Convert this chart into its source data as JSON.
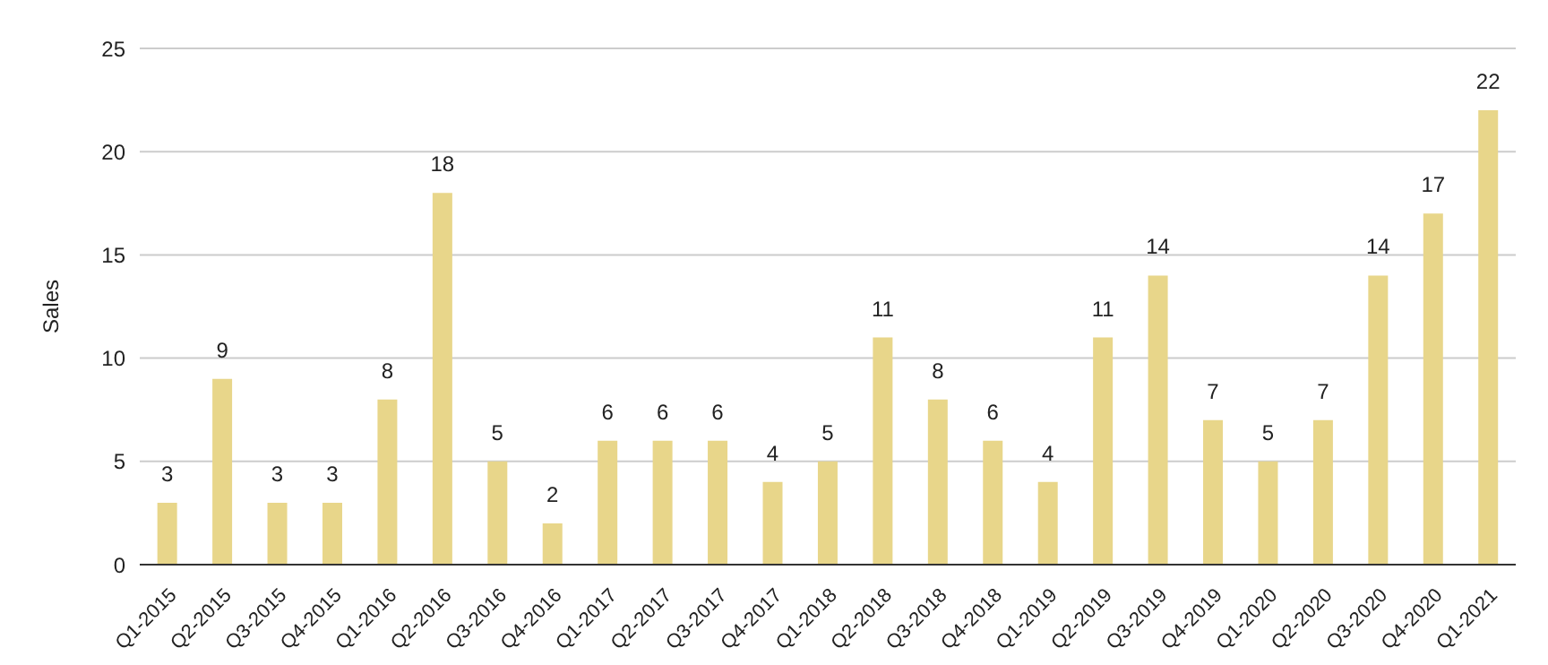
{
  "chart_data": {
    "type": "bar",
    "ylabel": "Sales",
    "categories": [
      "Q1-2015",
      "Q2-2015",
      "Q3-2015",
      "Q4-2015",
      "Q1-2016",
      "Q2-2016",
      "Q3-2016",
      "Q4-2016",
      "Q1-2017",
      "Q2-2017",
      "Q3-2017",
      "Q4-2017",
      "Q1-2018",
      "Q2-2018",
      "Q3-2018",
      "Q4-2018",
      "Q1-2019",
      "Q2-2019",
      "Q3-2019",
      "Q4-2019",
      "Q1-2020",
      "Q2-2020",
      "Q3-2020",
      "Q4-2020",
      "Q1-2021"
    ],
    "values": [
      3,
      9,
      3,
      3,
      8,
      18,
      5,
      2,
      6,
      6,
      6,
      4,
      5,
      11,
      8,
      6,
      4,
      11,
      14,
      7,
      5,
      7,
      14,
      17,
      22
    ],
    "color": "#e8d68a",
    "ylim": [
      0,
      25
    ],
    "yticks": [
      0,
      5,
      10,
      15,
      20,
      25
    ],
    "grid": "y",
    "data_labels": true
  }
}
